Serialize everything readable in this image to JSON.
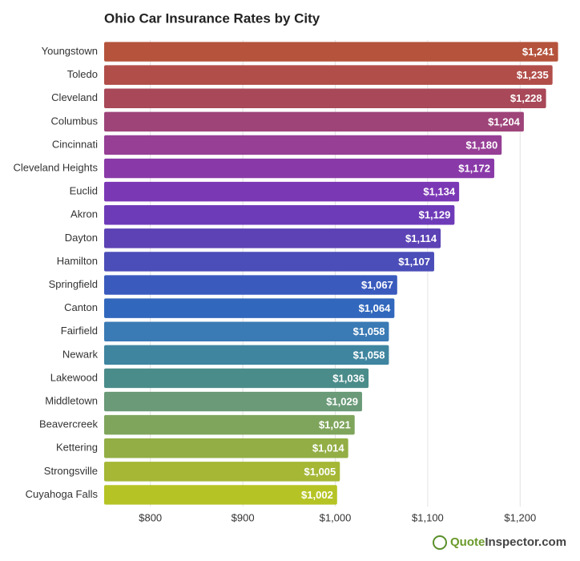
{
  "chart_data": {
    "type": "hbar",
    "title": "Ohio Car Insurance Rates by City",
    "categories": [
      "Youngstown",
      "Toledo",
      "Cleveland",
      "Columbus",
      "Cincinnati",
      "Cleveland Heights",
      "Euclid",
      "Akron",
      "Dayton",
      "Hamilton",
      "Springfield",
      "Canton",
      "Fairfield",
      "Newark",
      "Lakewood",
      "Middletown",
      "Beavercreek",
      "Kettering",
      "Strongsville",
      "Cuyahoga Falls"
    ],
    "values": [
      1241,
      1235,
      1228,
      1204,
      1180,
      1172,
      1134,
      1129,
      1114,
      1107,
      1067,
      1064,
      1058,
      1058,
      1036,
      1029,
      1021,
      1014,
      1005,
      1002
    ],
    "value_labels": [
      "$1,241",
      "$1,235",
      "$1,228",
      "$1,204",
      "$1,180",
      "$1,172",
      "$1,134",
      "$1,129",
      "$1,114",
      "$1,107",
      "$1,067",
      "$1,064",
      "$1,058",
      "$1,058",
      "$1,036",
      "$1,029",
      "$1,021",
      "$1,014",
      "$1,005",
      "$1,002"
    ],
    "colors": [
      "#b5533c",
      "#b14e4a",
      "#a84858",
      "#9e4479",
      "#963f95",
      "#8a3aa8",
      "#7b38b5",
      "#6e3bb8",
      "#5c42b5",
      "#4b4db8",
      "#3a5bbd",
      "#3168bd",
      "#3a7ab5",
      "#3f85a0",
      "#4a8c8a",
      "#6a9a78",
      "#7fa55c",
      "#92ae45",
      "#a5b735",
      "#b5c424"
    ],
    "xlim": [
      750,
      1250
    ],
    "xticks": [
      {
        "value": 800,
        "label": "$800"
      },
      {
        "value": 900,
        "label": "$900"
      },
      {
        "value": 1000,
        "label": "$1,000"
      },
      {
        "value": 1100,
        "label": "$1,100"
      },
      {
        "value": 1200,
        "label": "$1,200"
      }
    ],
    "grid": true,
    "watermark": [
      "Quote",
      "Inspector.com"
    ]
  }
}
